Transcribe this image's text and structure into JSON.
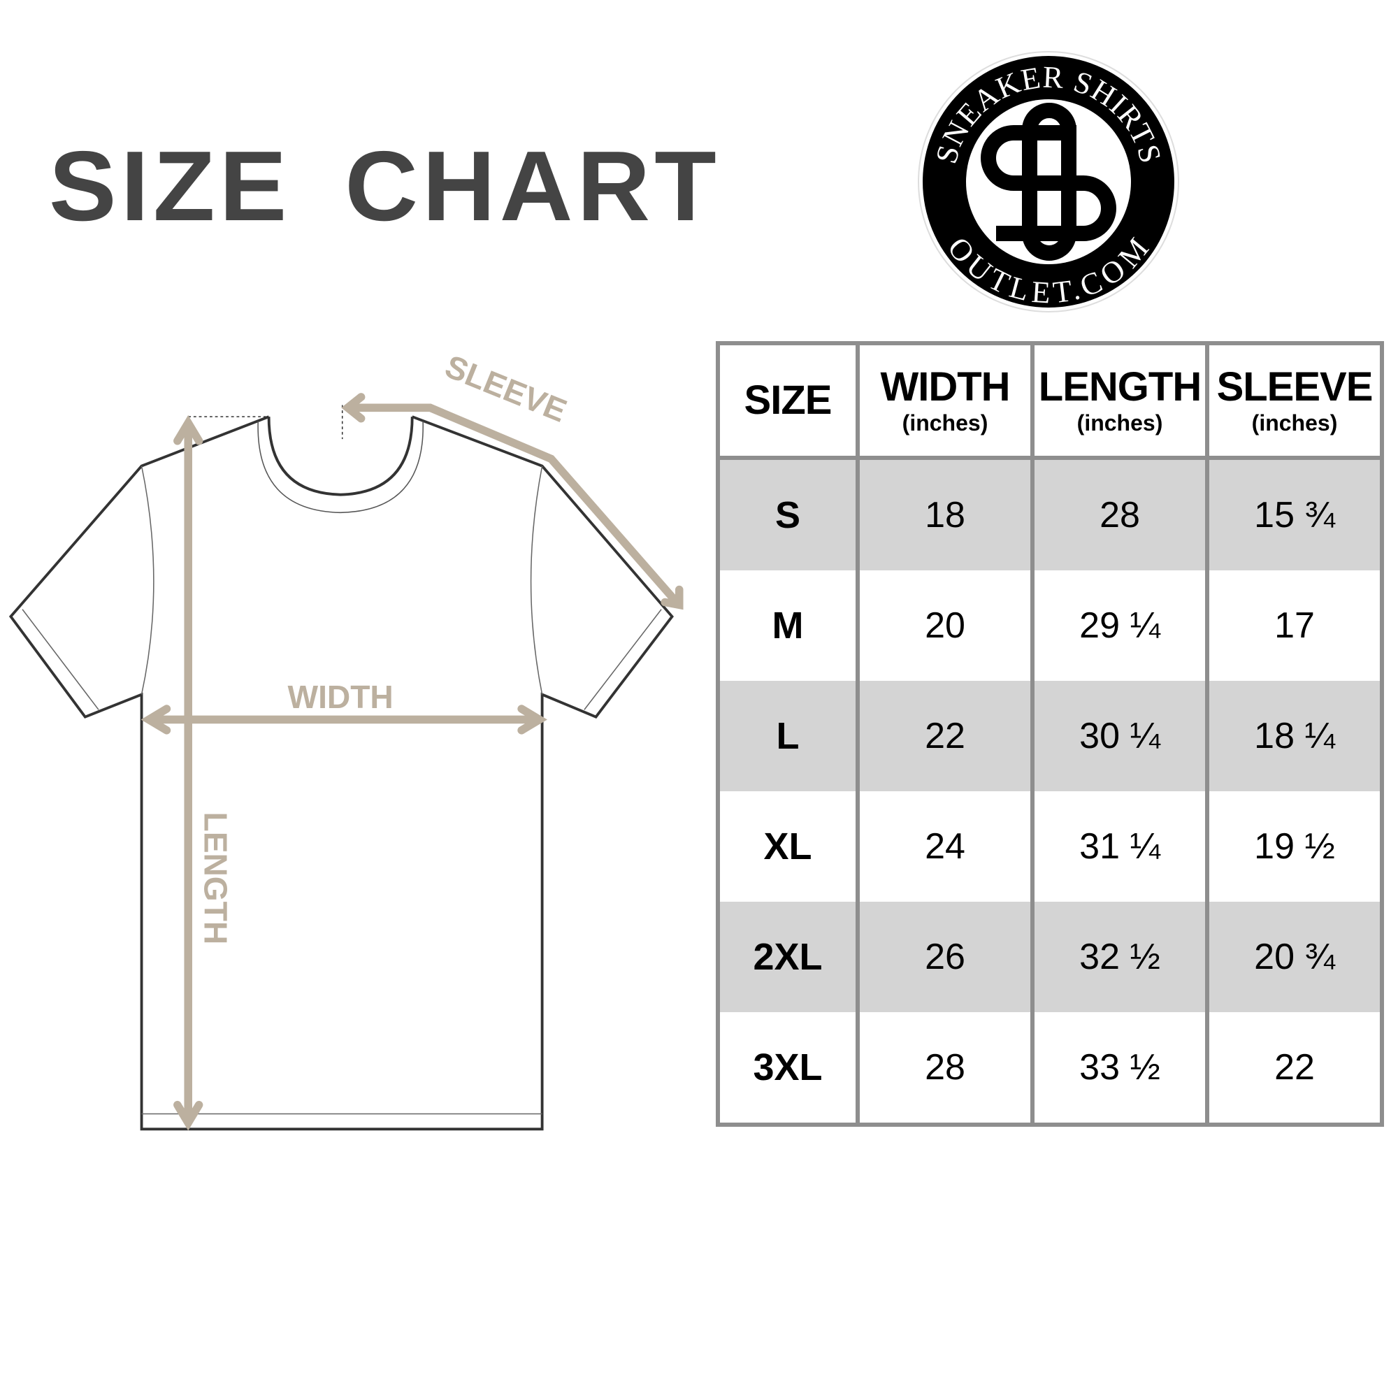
{
  "title": "SIZE CHART",
  "logo": {
    "top_text": "SNEAKER SHIRTS",
    "bottom_text": "OUTLET.COM",
    "monogram": "SS"
  },
  "diagram": {
    "sleeve_label": "SLEEVE",
    "width_label": "WIDTH",
    "length_label": "LENGTH",
    "arrow_color": "#bcb09f"
  },
  "table": {
    "headers": [
      {
        "label": "SIZE",
        "unit": ""
      },
      {
        "label": "WIDTH",
        "unit": "(inches)"
      },
      {
        "label": "LENGTH",
        "unit": "(inches)"
      },
      {
        "label": "SLEEVE",
        "unit": "(inches)"
      }
    ],
    "rows": [
      [
        "S",
        "18",
        "28",
        "15 ¾"
      ],
      [
        "M",
        "20",
        "29 ¼",
        "17"
      ],
      [
        "L",
        "22",
        "30 ¼",
        "18 ¼"
      ],
      [
        "XL",
        "24",
        "31 ¼",
        "19 ½"
      ],
      [
        "2XL",
        "26",
        "32 ½",
        "20 ¾"
      ],
      [
        "3XL",
        "28",
        "33 ½",
        "22"
      ]
    ],
    "shade_color": "#d4d4d4",
    "border_color": "#8e8e8e"
  }
}
